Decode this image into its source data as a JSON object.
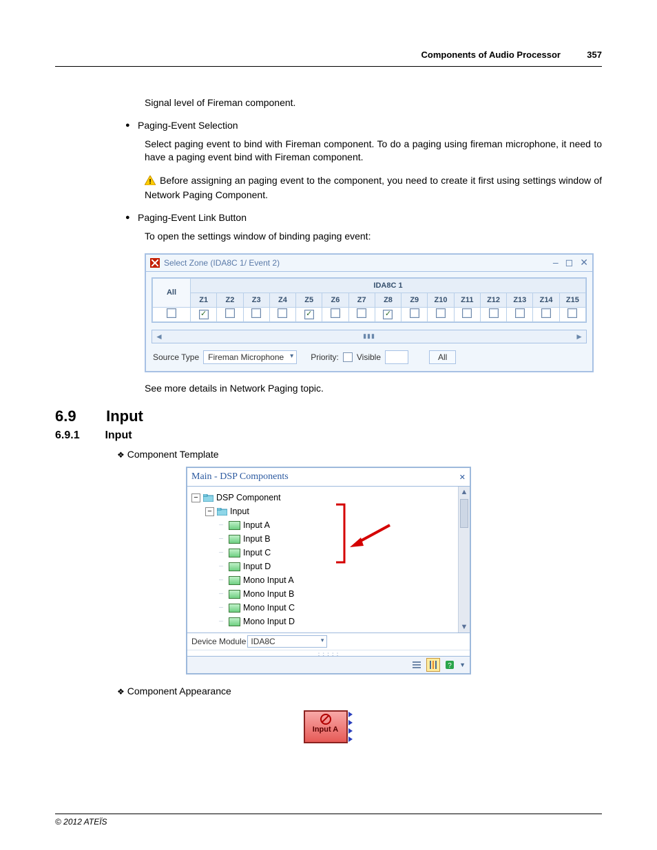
{
  "header": {
    "title": "Components of Audio Processor",
    "page_number": "357"
  },
  "body": {
    "signal_level": "Signal level of Fireman component.",
    "bullet1_label": "Paging-Event Selection",
    "bullet1_p": "Select paging event to bind with Fireman component. To do a paging using fireman microphone, it need to have a paging event bind with Fireman component.",
    "warning_p": "Before assigning an paging event to the component, you need to create it first using settings window of Network Paging Component.",
    "bullet2_label": "Paging-Event Link Button",
    "bullet2_p": "To open the settings window of binding paging event:",
    "see_more": "See more details in Network Paging topic."
  },
  "zone_window": {
    "title": "Select Zone (IDA8C 1/ Event 2)",
    "group_header": "IDA8C 1",
    "all_label": "All",
    "columns": [
      "Z1",
      "Z2",
      "Z3",
      "Z4",
      "Z5",
      "Z6",
      "Z7",
      "Z8",
      "Z9",
      "Z10",
      "Z11",
      "Z12",
      "Z13",
      "Z14",
      "Z15"
    ],
    "checked_columns": [
      "Z1",
      "Z5",
      "Z8"
    ],
    "header_bg": "#e6eef8",
    "border_color": "#a7c1e4",
    "source_type_label": "Source Type",
    "source_type_value": "Fireman Microphone",
    "priority_label": "Priority:",
    "visible_label": "Visible",
    "all_button": "All"
  },
  "sections": {
    "s69_num": "6.9",
    "s69_title": "Input",
    "s691_num": "6.9.1",
    "s691_title": "Input",
    "component_template": "Component Template",
    "component_appearance": "Component Appearance"
  },
  "tree_window": {
    "title": "Main - DSP Components",
    "root": "DSP Component",
    "node_input": "Input",
    "leaves": [
      "Input A",
      "Input B",
      "Input C",
      "Input D",
      "Mono Input A",
      "Mono Input B",
      "Mono Input C",
      "Mono Input D"
    ],
    "device_module_label": "Device Module",
    "device_module_value": "IDA8C",
    "arrow_color": "#d40000",
    "bracket_color": "#d40000"
  },
  "appearance": {
    "label": "Input A",
    "block_color": "#e65a56",
    "port_color": "#2a3fbd"
  },
  "footer": {
    "copyright": "© 2012 ATEÏS"
  }
}
